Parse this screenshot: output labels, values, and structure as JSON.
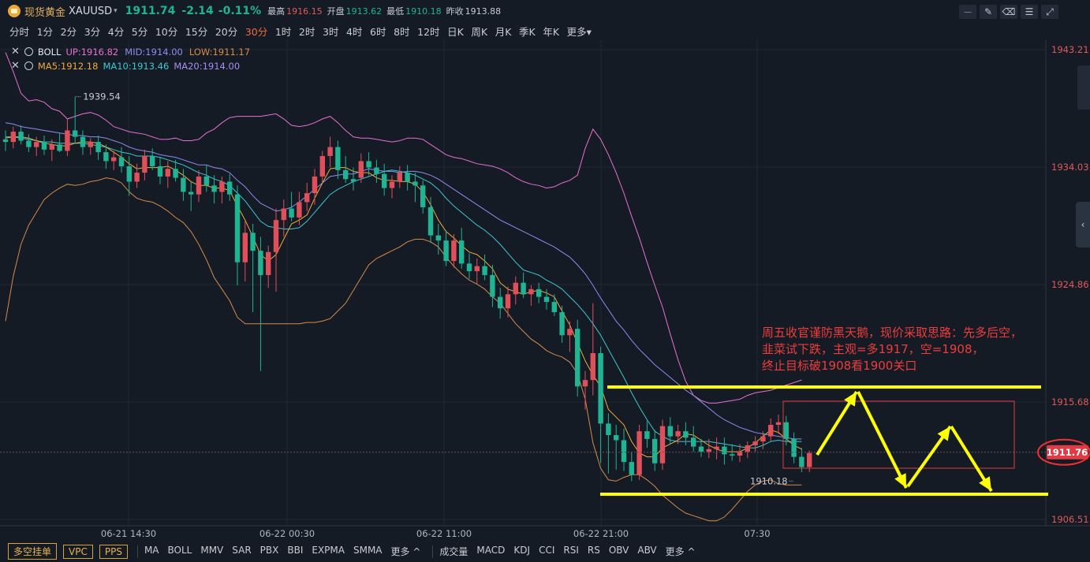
{
  "header": {
    "name": "现货黄金",
    "code": "XAUUSD",
    "caret": "▾",
    "price": "1911.74",
    "change": "-2.14",
    "change_pct": "-0.11%",
    "high_label": "最高",
    "high": "1916.15",
    "open_label": "开盘",
    "open": "1913.62",
    "low_label": "最低",
    "low": "1910.18",
    "prev_label": "昨收",
    "prev": "1913.88"
  },
  "toolbar_icons": [
    "line-chart-icon",
    "pen-icon",
    "eraser-icon",
    "settings-icon",
    "expand-icon"
  ],
  "periods": [
    "分时",
    "1分",
    "2分",
    "3分",
    "4分",
    "5分",
    "10分",
    "15分",
    "20分",
    "30分",
    "1时",
    "2时",
    "3时",
    "4时",
    "6时",
    "8时",
    "12时",
    "日K",
    "周K",
    "月K",
    "季K",
    "年K",
    "更多▾"
  ],
  "active_period": "30分",
  "indicators": {
    "boll": {
      "name": "BOLL",
      "up": "UP:1916.82",
      "mid": "MID:1914.00",
      "low": "LOW:1911.17"
    },
    "ma": {
      "ma5": "MA5:1912.18",
      "ma10": "MA10:1913.46",
      "ma20": "MA20:1914.00"
    }
  },
  "annotation": [
    "周五收官谨防黑天鹅，现价采取思路：先多后空，",
    "韭菜试下跌，主观=多1917，空=1908，",
    "终止目标破1908看1900关口"
  ],
  "bottom_bar": {
    "buttons": [
      "多空挂单",
      "VPC",
      "PPS"
    ],
    "group1": [
      "MA",
      "BOLL",
      "MMV",
      "SAR",
      "PBX",
      "BBI",
      "EXPMA",
      "SMMA",
      "更多 ^"
    ],
    "group2": [
      "成交量",
      "MACD",
      "KDJ",
      "CCI",
      "RSI",
      "RS",
      "OBV",
      "ABV",
      "更多 ^"
    ]
  },
  "colors": {
    "up": "#e0505a",
    "down": "#1fb594",
    "boll_up": "#e86fd2",
    "boll_mid": "#8c8cf0",
    "boll_low": "#d68a4a",
    "ma5": "#f2a93c",
    "ma10": "#3cc7d2",
    "annotation": "#ef3c3c",
    "highlight": "#ffff00"
  },
  "chart_data": {
    "type": "candlestick",
    "symbol": "XAUUSD",
    "ylim": [
      1906.51,
      1943.21
    ],
    "y_ticks": [
      "1943.21",
      "1934.03",
      "1924.86",
      "1915.68",
      "1906.51"
    ],
    "x_tick_labels": [
      "06-21 14:30",
      "06-22 00:30",
      "06-22 11:00",
      "06-22 21:00",
      "07:30"
    ],
    "current_price": "1911.76",
    "high_marker": "1939.54",
    "low_marker": "1910.18",
    "candles": [
      [
        1936.2,
        1936.9,
        1935.3,
        1936.0
      ],
      [
        1936.0,
        1937.2,
        1935.5,
        1936.8
      ],
      [
        1936.8,
        1937.3,
        1935.8,
        1936.1
      ],
      [
        1936.1,
        1936.6,
        1935.2,
        1935.6
      ],
      [
        1935.6,
        1936.4,
        1934.9,
        1936.0
      ],
      [
        1936.0,
        1936.5,
        1935.0,
        1935.4
      ],
      [
        1935.4,
        1936.2,
        1934.5,
        1935.8
      ],
      [
        1935.8,
        1936.7,
        1935.2,
        1935.3
      ],
      [
        1935.3,
        1937.8,
        1934.9,
        1936.9
      ],
      [
        1936.9,
        1939.5,
        1935.9,
        1936.4
      ],
      [
        1936.4,
        1936.9,
        1935.0,
        1935.6
      ],
      [
        1935.6,
        1936.3,
        1935.0,
        1936.0
      ],
      [
        1936.0,
        1936.5,
        1934.6,
        1935.2
      ],
      [
        1935.2,
        1935.8,
        1933.9,
        1934.5
      ],
      [
        1934.5,
        1935.3,
        1933.8,
        1934.8
      ],
      [
        1934.8,
        1935.6,
        1933.6,
        1934.1
      ],
      [
        1934.1,
        1934.9,
        1931.8,
        1932.9
      ],
      [
        1932.9,
        1934.3,
        1932.4,
        1933.6
      ],
      [
        1933.6,
        1935.4,
        1933.0,
        1934.9
      ],
      [
        1934.9,
        1935.5,
        1933.8,
        1934.1
      ],
      [
        1934.1,
        1934.8,
        1932.7,
        1933.3
      ],
      [
        1933.3,
        1934.5,
        1932.4,
        1933.9
      ],
      [
        1933.9,
        1934.6,
        1932.9,
        1933.2
      ],
      [
        1933.2,
        1933.9,
        1931.4,
        1932.1
      ],
      [
        1932.1,
        1932.9,
        1930.6,
        1931.9
      ],
      [
        1931.9,
        1933.8,
        1931.3,
        1933.3
      ],
      [
        1933.3,
        1934.2,
        1932.1,
        1932.6
      ],
      [
        1932.6,
        1933.4,
        1931.2,
        1932.1
      ],
      [
        1932.1,
        1933.3,
        1931.2,
        1932.9
      ],
      [
        1932.9,
        1933.5,
        1931.4,
        1931.9
      ],
      [
        1931.9,
        1932.6,
        1924.8,
        1926.6
      ],
      [
        1926.6,
        1929.8,
        1925.1,
        1928.9
      ],
      [
        1928.9,
        1929.6,
        1922.7,
        1927.5
      ],
      [
        1927.5,
        1928.6,
        1918.1,
        1925.6
      ],
      [
        1925.6,
        1927.9,
        1924.6,
        1927.4
      ],
      [
        1927.4,
        1930.8,
        1924.3,
        1929.9
      ],
      [
        1929.9,
        1931.5,
        1928.6,
        1930.8
      ],
      [
        1930.8,
        1932.1,
        1929.8,
        1930.1
      ],
      [
        1930.1,
        1932.1,
        1929.5,
        1931.3
      ],
      [
        1931.3,
        1932.8,
        1930.6,
        1932.0
      ],
      [
        1932.0,
        1933.9,
        1931.1,
        1933.3
      ],
      [
        1933.3,
        1935.3,
        1932.8,
        1934.9
      ],
      [
        1934.9,
        1936.4,
        1934.0,
        1935.6
      ],
      [
        1935.6,
        1936.1,
        1933.1,
        1933.8
      ],
      [
        1933.8,
        1934.9,
        1932.8,
        1933.1
      ],
      [
        1933.1,
        1934.0,
        1932.2,
        1932.9
      ],
      [
        1933.2,
        1935.1,
        1932.8,
        1934.5
      ],
      [
        1934.5,
        1935.2,
        1933.4,
        1934.0
      ],
      [
        1934.0,
        1934.6,
        1932.8,
        1933.5
      ],
      [
        1933.5,
        1934.3,
        1931.8,
        1932.4
      ],
      [
        1932.4,
        1933.4,
        1931.6,
        1932.9
      ],
      [
        1932.9,
        1934.1,
        1932.4,
        1933.6
      ],
      [
        1933.6,
        1934.2,
        1932.2,
        1932.9
      ],
      [
        1932.9,
        1933.6,
        1931.3,
        1932.6
      ],
      [
        1932.6,
        1933.0,
        1930.4,
        1930.9
      ],
      [
        1930.9,
        1931.7,
        1928.1,
        1928.7
      ],
      [
        1928.7,
        1929.6,
        1927.2,
        1928.3
      ],
      [
        1928.3,
        1929.1,
        1926.3,
        1926.7
      ],
      [
        1926.7,
        1928.8,
        1926.2,
        1928.3
      ],
      [
        1928.3,
        1929.3,
        1926.1,
        1926.5
      ],
      [
        1926.5,
        1927.3,
        1925.3,
        1925.9
      ],
      [
        1925.9,
        1926.9,
        1924.9,
        1926.3
      ],
      [
        1926.3,
        1927.2,
        1925.2,
        1925.6
      ],
      [
        1925.6,
        1926.4,
        1923.1,
        1923.9
      ],
      [
        1923.9,
        1924.6,
        1922.2,
        1923.0
      ],
      [
        1923.0,
        1924.7,
        1922.3,
        1924.1
      ],
      [
        1924.1,
        1925.5,
        1923.3,
        1925.0
      ],
      [
        1925.0,
        1925.8,
        1923.8,
        1924.1
      ],
      [
        1924.1,
        1924.8,
        1923.2,
        1924.5
      ],
      [
        1924.5,
        1925.0,
        1923.4,
        1923.9
      ],
      [
        1923.9,
        1924.5,
        1922.9,
        1923.5
      ],
      [
        1923.5,
        1924.1,
        1922.4,
        1922.7
      ],
      [
        1922.7,
        1923.2,
        1920.3,
        1920.9
      ],
      [
        1920.9,
        1922.0,
        1919.6,
        1921.4
      ],
      [
        1921.4,
        1922.1,
        1916.1,
        1916.9
      ],
      [
        1916.9,
        1918.1,
        1915.1,
        1917.4
      ],
      [
        1917.4,
        1923.4,
        1916.2,
        1919.5
      ],
      [
        1919.5,
        1920.0,
        1910.9,
        1914.0
      ],
      [
        1914.0,
        1914.8,
        1910.1,
        1913.1
      ],
      [
        1913.1,
        1913.9,
        1910.4,
        1912.7
      ],
      [
        1912.7,
        1913.6,
        1910.3,
        1911.0
      ],
      [
        1911.0,
        1911.8,
        1909.5,
        1910.0
      ],
      [
        1910.0,
        1913.9,
        1909.6,
        1913.4
      ],
      [
        1913.4,
        1914.2,
        1912.1,
        1912.8
      ],
      [
        1912.8,
        1913.5,
        1910.3,
        1910.9
      ],
      [
        1910.9,
        1914.3,
        1910.4,
        1913.8
      ],
      [
        1913.8,
        1914.5,
        1912.4,
        1913.0
      ],
      [
        1913.0,
        1913.9,
        1912.4,
        1913.4
      ],
      [
        1913.4,
        1914.1,
        1912.3,
        1912.9
      ],
      [
        1912.9,
        1913.8,
        1911.8,
        1912.2
      ],
      [
        1912.2,
        1912.8,
        1911.4,
        1911.8
      ],
      [
        1911.8,
        1912.8,
        1911.3,
        1912.0
      ],
      [
        1912.0,
        1912.9,
        1911.2,
        1912.2
      ],
      [
        1912.2,
        1912.9,
        1910.8,
        1911.6
      ],
      [
        1911.6,
        1912.4,
        1911.1,
        1911.5
      ],
      [
        1911.5,
        1912.4,
        1911.0,
        1911.8
      ],
      [
        1911.8,
        1912.6,
        1911.3,
        1912.3
      ],
      [
        1912.3,
        1913.0,
        1911.8,
        1912.6
      ],
      [
        1912.6,
        1913.4,
        1912.0,
        1913.0
      ],
      [
        1913.0,
        1914.4,
        1912.6,
        1913.9
      ],
      [
        1913.9,
        1914.7,
        1913.2,
        1914.1
      ],
      [
        1914.1,
        1914.6,
        1912.3,
        1912.8
      ],
      [
        1912.8,
        1913.3,
        1910.9,
        1911.4
      ],
      [
        1911.4,
        1912.1,
        1910.2,
        1910.6
      ],
      [
        1910.6,
        1911.9,
        1910.2,
        1911.7
      ]
    ],
    "boll_up": [
      1943.0,
      1941.5,
      1939.8,
      1939.2,
      1939.3,
      1939.1,
      1938.6,
      1938.4,
      1937.8,
      1938.0,
      1938.2,
      1938.3,
      1938.1,
      1937.7,
      1937.2,
      1937.0,
      1936.8,
      1936.7,
      1936.6,
      1936.4,
      1936.2,
      1936.2,
      1936.3,
      1936.1,
      1936.1,
      1936.2,
      1936.7,
      1937.0,
      1937.5,
      1937.9,
      1938.0,
      1938.0,
      1938.0,
      1938.0,
      1938.1,
      1938.2,
      1937.8,
      1937.3,
      1937.2,
      1937.3,
      1937.5,
      1937.8,
      1938.0,
      1937.5,
      1936.9,
      1936.4,
      1936.3,
      1936.3,
      1936.2,
      1936.1,
      1936.0,
      1936.1,
      1936.3,
      1936.3,
      1936.2,
      1935.8,
      1935.4,
      1935.0,
      1934.8,
      1934.7,
      1934.5,
      1934.3,
      1934.2,
      1934.1,
      1933.9,
      1933.6,
      1933.2,
      1932.9,
      1932.7,
      1932.6,
      1932.4,
      1932.5,
      1932.8,
      1933.0,
      1933.4,
      1935.5,
      1937.0,
      1936.2,
      1935.0,
      1933.6,
      1932.0,
      1930.2,
      1928.5,
      1926.6,
      1924.8,
      1923.1,
      1921.0,
      1919.0,
      1917.3,
      1916.2,
      1915.8,
      1915.6,
      1915.6,
      1915.7,
      1915.8,
      1915.9,
      1916.2,
      1916.4,
      1916.5,
      1916.6,
      1916.8,
      1917.0,
      1917.2,
      1917.4
    ],
    "boll_mid": [
      1937.5,
      1937.4,
      1937.2,
      1937.1,
      1937.0,
      1936.9,
      1936.8,
      1936.7,
      1936.6,
      1936.5,
      1936.5,
      1936.4,
      1936.4,
      1936.3,
      1936.1,
      1935.9,
      1935.6,
      1935.4,
      1935.3,
      1935.2,
      1935.0,
      1934.9,
      1934.8,
      1934.6,
      1934.4,
      1934.2,
      1934.2,
      1934.0,
      1933.9,
      1933.6,
      1933.0,
      1932.5,
      1931.8,
      1931.2,
      1930.9,
      1930.6,
      1930.7,
      1930.9,
      1931.3,
      1931.8,
      1932.3,
      1932.8,
      1933.3,
      1933.4,
      1933.5,
      1933.5,
      1933.7,
      1933.9,
      1933.8,
      1933.7,
      1933.7,
      1933.6,
      1933.7,
      1933.7,
      1933.6,
      1933.4,
      1933.1,
      1932.7,
      1932.3,
      1931.9,
      1931.5,
      1931.1,
      1930.7,
      1930.3,
      1929.9,
      1929.6,
      1929.3,
      1929.0,
      1928.7,
      1928.4,
      1928.1,
      1927.8,
      1927.4,
      1927.0,
      1926.4,
      1925.7,
      1924.8,
      1923.8,
      1922.9,
      1922.0,
      1921.3,
      1920.5,
      1919.8,
      1919.2,
      1918.6,
      1918.1,
      1917.6,
      1917.1,
      1916.6,
      1916.2,
      1915.7,
      1915.2,
      1914.7,
      1914.3,
      1914.0,
      1913.7,
      1913.5,
      1913.3,
      1913.2,
      1913.1,
      1913.0,
      1912.9,
      1912.8,
      1912.8
    ],
    "boll_low": [
      1922.0,
      1925.5,
      1928.0,
      1929.5,
      1930.5,
      1931.5,
      1932.0,
      1932.4,
      1932.7,
      1932.6,
      1932.7,
      1932.9,
      1933.0,
      1933.2,
      1933.1,
      1932.8,
      1932.1,
      1931.6,
      1931.4,
      1931.3,
      1931.0,
      1930.6,
      1930.1,
      1929.7,
      1929.0,
      1928.0,
      1926.8,
      1925.4,
      1924.5,
      1923.6,
      1922.3,
      1921.8,
      1921.8,
      1921.8,
      1921.8,
      1921.8,
      1921.8,
      1921.8,
      1921.8,
      1921.9,
      1921.9,
      1922.0,
      1922.2,
      1922.8,
      1923.4,
      1924.4,
      1925.4,
      1926.4,
      1926.9,
      1927.2,
      1927.5,
      1927.8,
      1928.2,
      1928.4,
      1928.4,
      1928.2,
      1927.8,
      1927.0,
      1926.3,
      1925.7,
      1925.2,
      1924.9,
      1924.5,
      1923.9,
      1923.4,
      1922.6,
      1921.8,
      1921.2,
      1920.6,
      1920.2,
      1919.7,
      1919.4,
      1919.2,
      1918.8,
      1917.9,
      1915.9,
      1912.5,
      1910.5,
      1909.6,
      1909.5,
      1909.8,
      1910.0,
      1910.0,
      1909.6,
      1909.1,
      1908.4,
      1907.9,
      1907.4,
      1907.0,
      1906.8,
      1906.6,
      1906.4,
      1906.4,
      1906.7,
      1907.3,
      1908.0,
      1908.7,
      1909.2,
      1909.5,
      1909.6,
      1909.3,
      1909.2,
      1909.2,
      1909.2
    ],
    "ma5": [
      1936.3,
      1936.4,
      1936.4,
      1936.3,
      1936.1,
      1935.9,
      1935.8,
      1935.7,
      1935.7,
      1935.9,
      1936.0,
      1936.0,
      1935.9,
      1935.6,
      1935.2,
      1934.8,
      1934.3,
      1933.9,
      1934.0,
      1934.0,
      1934.0,
      1934.1,
      1933.8,
      1933.4,
      1932.9,
      1932.6,
      1932.6,
      1932.4,
      1932.4,
      1932.2,
      1931.0,
      1929.9,
      1928.6,
      1927.2,
      1926.7,
      1927.2,
      1928.4,
      1929.6,
      1929.9,
      1930.3,
      1931.6,
      1932.8,
      1933.9,
      1934.0,
      1934.0,
      1933.7,
      1933.6,
      1933.6,
      1933.2,
      1933.0,
      1933.0,
      1932.9,
      1932.9,
      1932.7,
      1932.1,
      1931.1,
      1929.9,
      1929.0,
      1928.5,
      1927.9,
      1927.4,
      1927.2,
      1926.7,
      1926.1,
      1925.0,
      1924.5,
      1924.3,
      1924.1,
      1924.3,
      1924.4,
      1924.2,
      1923.9,
      1922.8,
      1921.7,
      1920.3,
      1918.9,
      1917.8,
      1916.9,
      1915.1,
      1914.5,
      1913.9,
      1912.6,
      1911.7,
      1911.4,
      1911.4,
      1912.1,
      1912.4,
      1912.7,
      1913.2,
      1913.1,
      1912.7,
      1912.3,
      1912.0,
      1911.8,
      1911.8,
      1911.8,
      1912.1,
      1912.5,
      1913.0,
      1913.5,
      1913.3,
      1912.8,
      1912.3,
      1912.0
    ],
    "ma10": [
      1936.4,
      1936.4,
      1936.3,
      1936.2,
      1936.1,
      1936.0,
      1936.0,
      1935.9,
      1935.9,
      1935.9,
      1935.9,
      1935.8,
      1935.7,
      1935.6,
      1935.4,
      1935.2,
      1935.1,
      1934.9,
      1934.9,
      1934.9,
      1934.8,
      1934.6,
      1934.4,
      1934.2,
      1933.9,
      1933.6,
      1933.4,
      1933.1,
      1932.9,
      1932.6,
      1932.0,
      1931.4,
      1930.6,
      1929.8,
      1929.4,
      1929.3,
      1929.2,
      1929.2,
      1929.3,
      1929.8,
      1930.5,
      1931.2,
      1931.9,
      1932.3,
      1932.6,
      1932.9,
      1933.1,
      1933.3,
      1933.5,
      1933.7,
      1933.8,
      1933.7,
      1933.6,
      1933.4,
      1933.1,
      1932.8,
      1932.3,
      1931.6,
      1931.0,
      1930.5,
      1930.0,
      1929.5,
      1929.1,
      1928.6,
      1928.0,
      1927.3,
      1926.6,
      1926.0,
      1925.8,
      1925.6,
      1925.2,
      1924.9,
      1924.5,
      1923.9,
      1923.3,
      1922.6,
      1921.8,
      1920.9,
      1919.8,
      1918.7,
      1917.6,
      1916.4,
      1915.3,
      1914.3,
      1913.4,
      1913.0,
      1912.7,
      1912.6,
      1912.6,
      1912.6,
      1912.6,
      1912.6,
      1912.5,
      1912.4,
      1912.3,
      1912.2,
      1912.1,
      1912.1,
      1912.3,
      1912.6,
      1912.7,
      1912.6,
      1912.6,
      1912.6
    ]
  }
}
